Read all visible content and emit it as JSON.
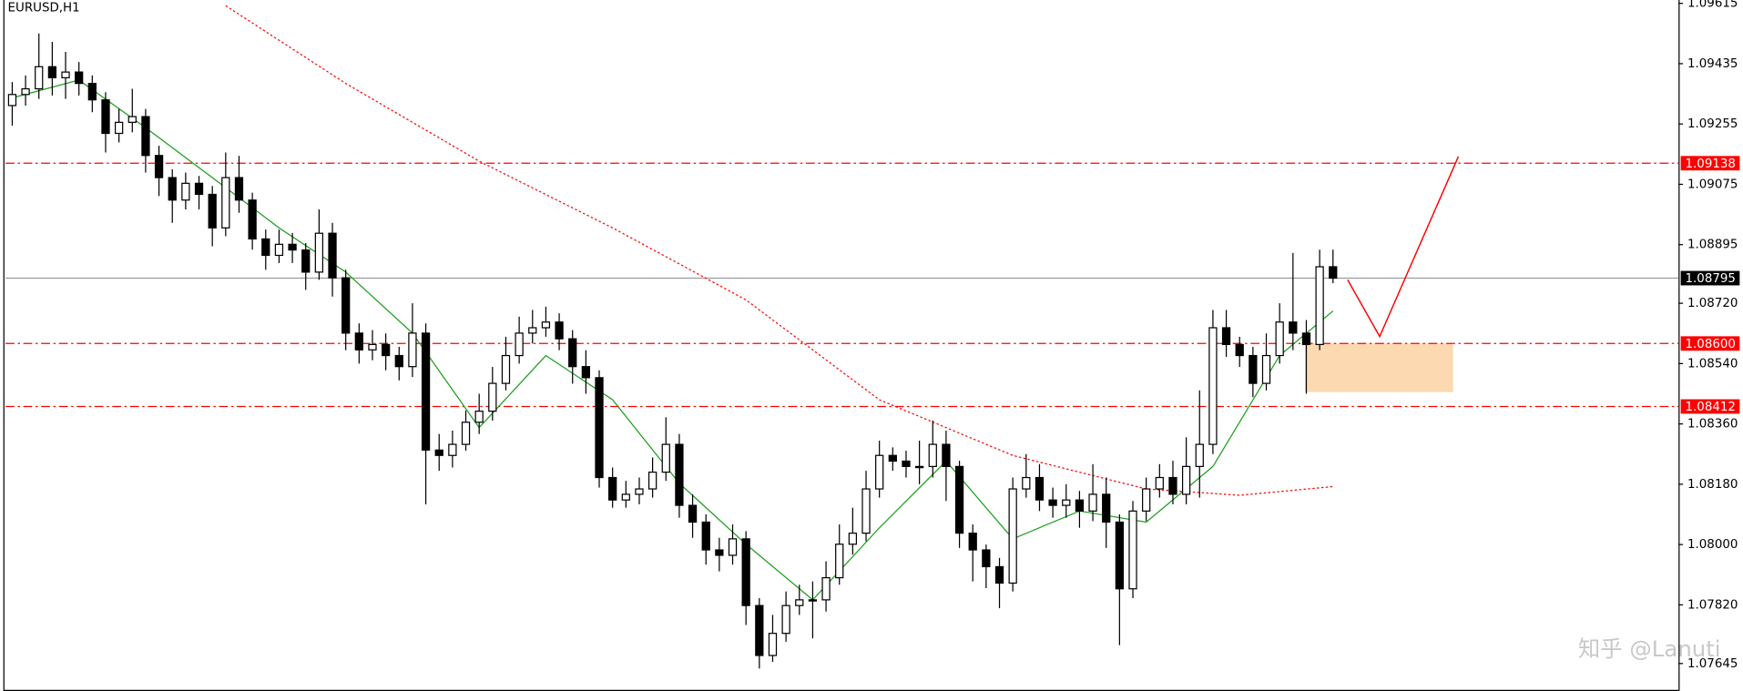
{
  "chart_data": {
    "type": "candlestick",
    "title": "EURUSD,H1",
    "xlim": [
      -0.5,
      124.9
    ],
    "ylim": [
      1.07563,
      1.09625
    ],
    "yticks": [
      1.09615,
      1.09435,
      1.09255,
      1.09075,
      1.08895,
      {
        "value": 1.0872,
        "label": "1.08720"
      },
      {
        "value": 1.0854,
        "label": "1.08540"
      },
      {
        "value": 1.0836,
        "label": "1.08360"
      },
      {
        "value": 1.0818,
        "label": "1.08180"
      },
      {
        "value": 1.08,
        "label": "1.08000"
      },
      {
        "value": 1.0782,
        "label": "1.07820"
      },
      1.07645
    ],
    "candle_color": "#000000",
    "bull_fill": "#ffffff",
    "open": [
      1.0931,
      1.09343,
      1.0936,
      1.09426,
      1.09393,
      1.0941,
      1.09376,
      1.09327,
      1.09227,
      1.0926,
      1.09277,
      1.09161,
      1.09095,
      1.09028,
      1.09078,
      1.09045,
      1.08945,
      1.09095,
      1.09028,
      1.08912,
      1.08863,
      1.08896,
      1.08879,
      1.08813,
      1.08929,
      1.08796,
      1.08631,
      1.08581,
      1.08597,
      1.08564,
      1.08531,
      1.08631,
      1.08282,
      1.08266,
      1.08299,
      1.08365,
      1.08398,
      1.08481,
      1.08564,
      1.08631,
      1.08647,
      1.08664,
      1.08614,
      1.08531,
      1.08498,
      1.082,
      1.08133,
      1.0815,
      1.08166,
      1.08216,
      1.08299,
      1.08117,
      1.08067,
      1.07984,
      1.07968,
      1.08017,
      1.07818,
      1.07669,
      1.07735,
      1.07818,
      1.07835,
      1.07835,
      1.07901,
      1.08001,
      1.08034,
      1.08166,
      1.08266,
      1.08249,
      1.08233,
      1.08233,
      1.08299,
      1.08233,
      1.08034,
      1.07984,
      1.07934,
      1.07885,
      1.08166,
      1.082,
      1.08133,
      1.08117,
      1.08133,
      1.081,
      1.0815,
      1.08067,
      1.07868,
      1.081,
      1.08166,
      1.082,
      1.0815,
      1.08233,
      1.08299,
      1.08647,
      1.08597,
      1.08564,
      1.08481,
      1.08564,
      1.08664,
      1.08631,
      1.08597,
      1.08829
    ],
    "high": [
      1.0938,
      1.094,
      1.09525,
      1.095,
      1.0947,
      1.0944,
      1.094,
      1.0935,
      1.093,
      1.0936,
      1.093,
      1.0919,
      1.0912,
      1.0911,
      1.091,
      1.0907,
      1.0917,
      1.0916,
      1.0905,
      1.0894,
      1.0894,
      1.0893,
      1.089,
      1.09,
      1.0896,
      1.0882,
      1.0866,
      1.0864,
      1.0863,
      1.0859,
      1.0872,
      1.0866,
      1.0833,
      1.0834,
      1.084,
      1.0845,
      1.0853,
      1.0862,
      1.0868,
      1.087,
      1.0871,
      1.0869,
      1.0864,
      1.0858,
      1.0852,
      1.0823,
      1.0819,
      1.082,
      1.0826,
      1.0838,
      1.0833,
      1.0815,
      1.0809,
      1.0802,
      1.0806,
      1.0804,
      1.0784,
      1.0779,
      1.0786,
      1.0788,
      1.0789,
      1.0795,
      1.0806,
      1.0811,
      1.0822,
      1.0831,
      1.0829,
      1.0828,
      1.0831,
      1.0837,
      1.0834,
      1.0825,
      1.0806,
      1.08,
      1.0796,
      1.082,
      1.0827,
      1.0824,
      1.0817,
      1.0818,
      1.0816,
      1.0824,
      1.082,
      1.0809,
      1.0813,
      1.082,
      1.0824,
      1.0825,
      1.0832,
      1.0846,
      1.087,
      1.087,
      1.0862,
      1.0859,
      1.0863,
      1.0872,
      1.0887,
      1.0867,
      1.0888,
      1.0888
    ],
    "low": [
      1.0925,
      1.0931,
      1.0933,
      1.0934,
      1.0933,
      1.0934,
      1.0929,
      1.0917,
      1.092,
      1.0923,
      1.0911,
      1.0904,
      1.0896,
      1.09,
      1.09,
      1.0889,
      1.0892,
      1.0899,
      1.0888,
      1.0882,
      1.0884,
      1.0884,
      1.0876,
      1.0879,
      1.0874,
      1.0858,
      1.0854,
      1.0855,
      1.0852,
      1.0849,
      1.085,
      1.0812,
      1.0822,
      1.0823,
      1.0828,
      1.0833,
      1.0837,
      1.0846,
      1.0854,
      1.086,
      1.0862,
      1.0858,
      1.0848,
      1.0845,
      1.0817,
      1.0811,
      1.0811,
      1.0812,
      1.0814,
      1.0819,
      1.0808,
      1.0802,
      1.0794,
      1.0792,
      1.0794,
      1.0776,
      1.0763,
      1.0765,
      1.0771,
      1.0779,
      1.0772,
      1.078,
      1.0788,
      1.0797,
      1.0801,
      1.0814,
      1.0822,
      1.082,
      1.0818,
      1.082,
      1.0813,
      1.0799,
      1.0789,
      1.0787,
      1.0781,
      1.0786,
      1.0814,
      1.081,
      1.0808,
      1.0808,
      1.0805,
      1.0807,
      1.0799,
      1.077,
      1.0784,
      1.0807,
      1.0814,
      1.0812,
      1.0812,
      1.0814,
      1.0827,
      1.0856,
      1.0853,
      1.0844,
      1.0846,
      1.0854,
      1.0858,
      1.0845,
      1.0858,
      1.0878
    ],
    "close": [
      1.09343,
      1.0936,
      1.09426,
      1.09393,
      1.0941,
      1.09376,
      1.09327,
      1.09227,
      1.0926,
      1.09277,
      1.09161,
      1.09095,
      1.09028,
      1.09078,
      1.09045,
      1.08945,
      1.09095,
      1.09028,
      1.08912,
      1.08863,
      1.08896,
      1.08879,
      1.08813,
      1.08929,
      1.08796,
      1.08631,
      1.08581,
      1.08597,
      1.08564,
      1.08531,
      1.08631,
      1.08282,
      1.08266,
      1.08299,
      1.08365,
      1.08398,
      1.08481,
      1.08564,
      1.08631,
      1.08647,
      1.08664,
      1.08614,
      1.08531,
      1.08498,
      1.082,
      1.08133,
      1.0815,
      1.08166,
      1.08216,
      1.08299,
      1.08117,
      1.08067,
      1.07984,
      1.07968,
      1.08017,
      1.07818,
      1.07669,
      1.07735,
      1.07818,
      1.07835,
      1.07835,
      1.07901,
      1.08001,
      1.08034,
      1.08166,
      1.08266,
      1.08249,
      1.08233,
      1.08233,
      1.08299,
      1.08233,
      1.08034,
      1.07984,
      1.07934,
      1.07885,
      1.08166,
      1.082,
      1.08133,
      1.08117,
      1.08133,
      1.081,
      1.0815,
      1.08067,
      1.07868,
      1.081,
      1.08166,
      1.082,
      1.0815,
      1.08233,
      1.08299,
      1.08647,
      1.08597,
      1.08564,
      1.08481,
      1.08564,
      1.08664,
      1.08631,
      1.08597,
      1.08829,
      1.08795
    ],
    "series": [
      {
        "color": "#1a9c1a",
        "style": "solid",
        "x": [
          0,
          5,
          10,
          15,
          20,
          25,
          30,
          35,
          40,
          45,
          50,
          55,
          60,
          65,
          70,
          75,
          80,
          85,
          90,
          95,
          99
        ],
        "values": [
          1.09333,
          1.09386,
          1.09244,
          1.09095,
          1.08945,
          1.08813,
          1.08631,
          1.08349,
          1.08564,
          1.08432,
          1.08183,
          1.08001,
          1.07835,
          1.0805,
          1.08249,
          1.08017,
          1.081,
          1.08067,
          1.08233,
          1.08564,
          1.08697
        ]
      },
      {
        "color": "#ff0000",
        "style": "dotted",
        "x": [
          16,
          25,
          35,
          45,
          55,
          65,
          75,
          85,
          92,
          99
        ],
        "values": [
          1.09608,
          1.09376,
          1.09144,
          1.08945,
          1.0873,
          1.08432,
          1.08266,
          1.08166,
          1.08147,
          1.08173
        ]
      }
    ],
    "levels": [
      {
        "value": 1.09138,
        "color": "#ff0000",
        "box_color": "#ff0000",
        "style": "dashdot"
      },
      {
        "value": 1.08795,
        "color": "#9a9a9a",
        "box_color": "#000000",
        "style": "solid"
      },
      {
        "value": 1.086,
        "label": "1.08600",
        "color": "#ff0000",
        "box_color": "#ff0000",
        "style": "dashdot"
      },
      {
        "value": 1.08412,
        "color": "#ff0000",
        "box_color": "#ff0000",
        "style": "dashdot"
      }
    ],
    "zone": {
      "x": [
        96.9,
        108
      ],
      "values": [
        1.08455,
        1.086
      ],
      "color": "#fcd9b0"
    },
    "arrow": {
      "x": [
        100.1,
        102.5,
        108.4
      ],
      "values": [
        1.0879,
        1.08621,
        1.09158
      ],
      "color": "#ff0000"
    },
    "watermark": "知乎 @Lanuti"
  }
}
